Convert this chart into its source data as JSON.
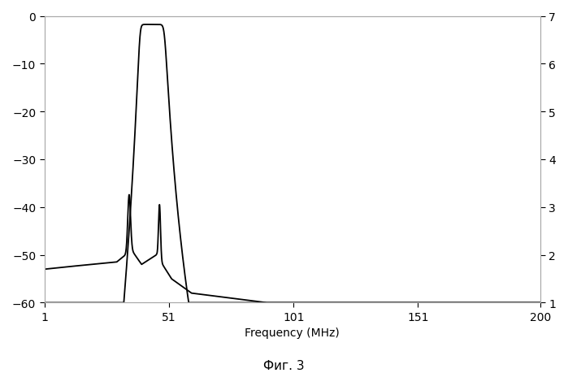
{
  "title": "",
  "xlabel": "Frequency (MHz)",
  "ylabel_left": "",
  "ylabel_right": "",
  "caption": "Фиг. 3",
  "xlim": [
    1,
    200
  ],
  "ylim_left": [
    -60,
    0
  ],
  "ylim_right": [
    1,
    7
  ],
  "xticks": [
    1,
    51,
    101,
    151,
    200
  ],
  "yticks_left": [
    0,
    -10,
    -20,
    -30,
    -40,
    -50,
    -60
  ],
  "yticks_right": [
    1,
    2,
    3,
    4,
    5,
    6,
    7
  ],
  "line_color": "#000000",
  "background_color": "#ffffff",
  "fig_width": 6.99,
  "fig_height": 4.6,
  "dpi": 100
}
